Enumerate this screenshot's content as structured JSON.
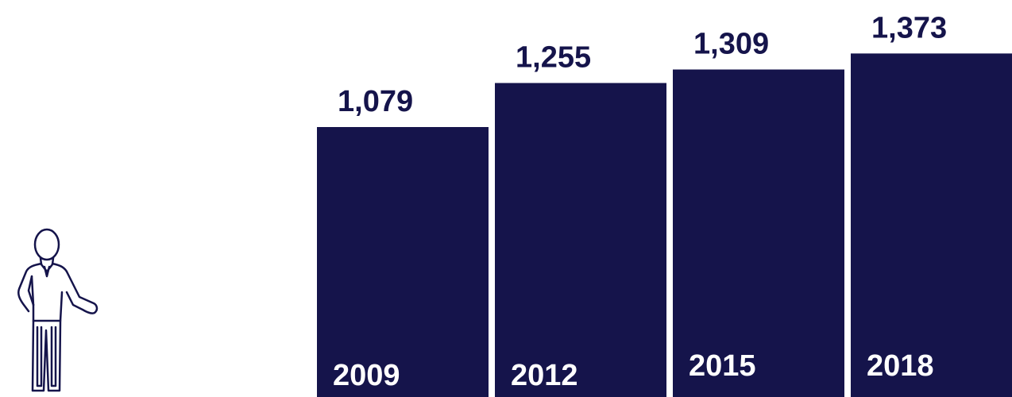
{
  "chart_data": {
    "type": "bar",
    "categories": [
      "2009",
      "2012",
      "2015",
      "2018"
    ],
    "values": [
      1079,
      1255,
      1309,
      1373
    ],
    "value_labels": [
      "1,079",
      "1,255",
      "1,309",
      "1,373"
    ],
    "title": "",
    "xlabel": "",
    "ylabel": "",
    "grid": false,
    "legend": "none"
  },
  "colors": {
    "bar": "#15144b",
    "value_text": "#15144b",
    "category_text": "#ffffff",
    "icon_stroke": "#15144b"
  },
  "icons": {
    "figure": "person-icon"
  }
}
